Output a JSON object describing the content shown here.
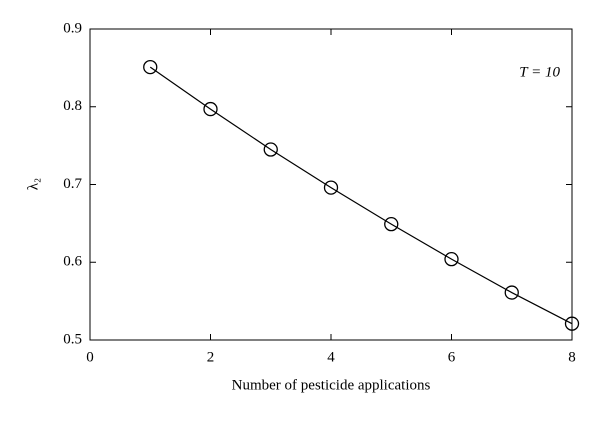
{
  "chart_data": {
    "type": "line",
    "xlabel": "Number of pesticide applications",
    "ylabel": "λ₂",
    "annotation": "T = 10",
    "x": [
      1,
      2,
      3,
      4,
      5,
      6,
      7,
      8
    ],
    "series": [
      {
        "color": "#000000",
        "marker": "circle",
        "values": [
          0.851,
          0.797,
          0.745,
          0.696,
          0.649,
          0.604,
          0.561,
          0.521
        ]
      }
    ],
    "xlim": [
      0,
      8
    ],
    "xticks": [
      0,
      2,
      4,
      6,
      8
    ],
    "ylim": [
      0.5,
      0.9
    ],
    "yticks": [
      0.5,
      0.6,
      0.7,
      0.8,
      0.9
    ],
    "grid": false
  }
}
